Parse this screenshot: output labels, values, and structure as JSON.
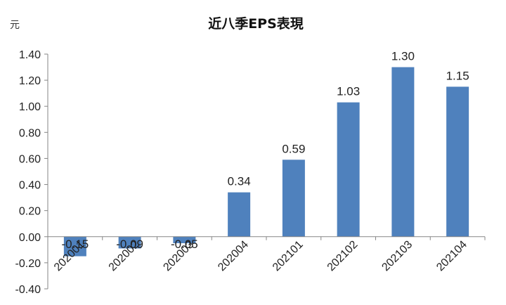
{
  "chart_data": {
    "type": "bar",
    "title": "近八季EPS表現",
    "unit_label": "元",
    "categories": [
      "202001",
      "202002",
      "202003",
      "202004",
      "202101",
      "202102",
      "202103",
      "202104"
    ],
    "values": [
      -0.15,
      -0.09,
      -0.05,
      0.34,
      0.59,
      1.03,
      1.3,
      1.15
    ],
    "value_labels": [
      "-0.15",
      "-0.09",
      "-0.05",
      "0.34",
      "0.59",
      "1.03",
      "1.30",
      "1.15"
    ],
    "ylim": [
      -0.4,
      1.4
    ],
    "yticks": [
      "1.40",
      "1.20",
      "1.00",
      "0.80",
      "0.60",
      "0.40",
      "0.20",
      "0.00",
      "-0.20",
      "-0.40"
    ],
    "ytick_values": [
      1.4,
      1.2,
      1.0,
      0.8,
      0.6,
      0.4,
      0.2,
      0.0,
      -0.2,
      -0.4
    ],
    "xlabel": "",
    "ylabel": "",
    "grid": false,
    "legend": "none",
    "bar_color": "#4f81bd",
    "axis_color": "#868686"
  }
}
